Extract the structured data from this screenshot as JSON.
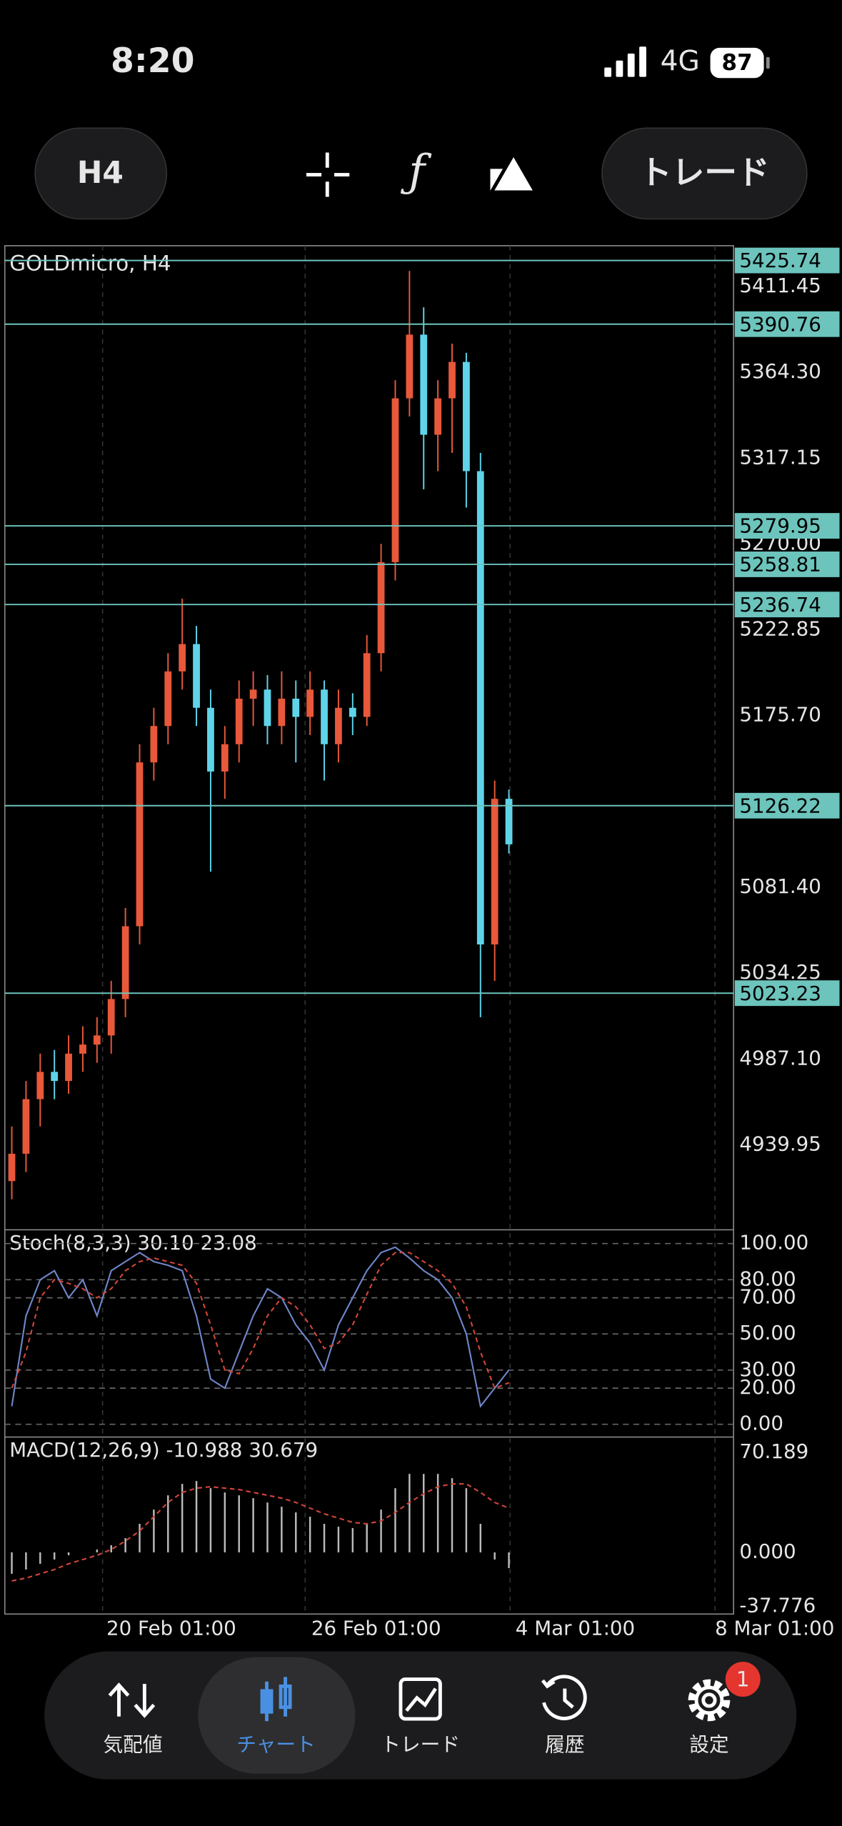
{
  "status_bar": {
    "time": "8:20",
    "network": "4G",
    "battery": "87"
  },
  "toolbar": {
    "timeframe": "H4",
    "trade_button": "トレード"
  },
  "chart": {
    "symbol": "GOLDmicro, H4",
    "price_axis": {
      "ylim": [
        4893.9,
        5433.2
      ],
      "ticks": [
        5411.45,
        {
          "value": 5364.3,
          "label": "5364.30"
        },
        5317.15,
        {
          "value": 5270,
          "label": "5270.00"
        },
        5222.85,
        {
          "value": 5175.7,
          "label": "5175.70"
        },
        {
          "value": 5081.4,
          "label": "5081.40"
        },
        5034.25,
        {
          "value": 4987.1,
          "label": "4987.10"
        },
        4939.95
      ]
    },
    "levels": [
      5425.74,
      5390.76,
      5279.95,
      5258.81,
      5236.74,
      5126.22,
      5023.23
    ],
    "candles": {
      "open": [
        4920,
        4935,
        4965,
        4980,
        4975,
        4990,
        4995,
        5000,
        5020,
        5060,
        5150,
        5170,
        5200,
        5215,
        5180,
        5145,
        5160,
        5185,
        5190,
        5170,
        5185,
        5175,
        5190,
        5160,
        5180,
        5175,
        5210,
        5260,
        5350,
        5385,
        5330,
        5350,
        5370,
        5310,
        5050,
        5130
      ],
      "high": [
        4950,
        4975,
        4990,
        4992,
        5000,
        5005,
        5010,
        5030,
        5070,
        5160,
        5180,
        5210,
        5240,
        5225,
        5190,
        5170,
        5195,
        5200,
        5198,
        5200,
        5195,
        5200,
        5195,
        5190,
        5188,
        5220,
        5270,
        5360,
        5420,
        5400,
        5360,
        5380,
        5375,
        5320,
        5140,
        5135
      ],
      "low": [
        4910,
        4925,
        4950,
        4965,
        4968,
        4980,
        4985,
        4990,
        5010,
        5050,
        5140,
        5160,
        5190,
        5170,
        5090,
        5130,
        5150,
        5170,
        5160,
        5160,
        5150,
        5165,
        5140,
        5150,
        5165,
        5170,
        5200,
        5250,
        5340,
        5300,
        5310,
        5320,
        5290,
        5010,
        5030,
        5100
      ],
      "close": [
        4935,
        4965,
        4980,
        4975,
        4990,
        4995,
        5000,
        5020,
        5060,
        5150,
        5170,
        5200,
        5215,
        5180,
        5145,
        5160,
        5185,
        5190,
        5170,
        5185,
        5175,
        5190,
        5160,
        5180,
        5175,
        5210,
        5260,
        5350,
        5385,
        5330,
        5350,
        5370,
        5310,
        5050,
        5130,
        5105
      ]
    },
    "stoch": {
      "title": "Stoch(8,3,3) 30.10 23.08",
      "ylim": [
        -6.4,
        107
      ],
      "ticks": [
        {
          "value": 100,
          "label": "100.00"
        },
        {
          "value": 80,
          "label": "80.00"
        },
        {
          "value": 70,
          "label": "70.00"
        },
        {
          "value": 50,
          "label": "50.00"
        },
        {
          "value": 30,
          "label": "30.00"
        },
        {
          "value": 20,
          "label": "20.00"
        },
        {
          "value": 0,
          "label": "0.00"
        }
      ],
      "main": [
        10,
        60,
        80,
        85,
        70,
        80,
        60,
        85,
        90,
        95,
        90,
        88,
        85,
        60,
        25,
        20,
        40,
        60,
        75,
        70,
        55,
        45,
        30,
        55,
        70,
        85,
        95,
        98,
        92,
        85,
        80,
        70,
        50,
        10,
        20,
        30
      ],
      "signal": [
        20,
        40,
        70,
        80,
        78,
        75,
        70,
        75,
        85,
        90,
        92,
        90,
        88,
        78,
        55,
        30,
        28,
        42,
        60,
        70,
        65,
        55,
        42,
        45,
        55,
        72,
        88,
        95,
        95,
        90,
        85,
        78,
        65,
        40,
        20,
        23
      ]
    },
    "macd": {
      "title": "MACD(12,26,9) -10.988 30.679",
      "ylim": [
        -42.4,
        80
      ],
      "ticks": [
        70.189,
        {
          "value": 0,
          "label": "0.000"
        },
        -37.776
      ],
      "histogram": [
        -15,
        -12,
        -8,
        -5,
        -2,
        0,
        2,
        5,
        10,
        20,
        30,
        40,
        48,
        50,
        45,
        42,
        40,
        38,
        35,
        32,
        28,
        25,
        20,
        18,
        17,
        20,
        30,
        45,
        55,
        55,
        55,
        52,
        45,
        20,
        -5,
        -11
      ],
      "signal": [
        -20,
        -18,
        -15,
        -12,
        -8,
        -5,
        -2,
        2,
        8,
        15,
        25,
        35,
        42,
        45,
        46,
        45,
        44,
        42,
        40,
        38,
        35,
        31,
        27,
        24,
        21,
        20,
        22,
        28,
        35,
        41,
        46,
        48,
        48,
        42,
        35,
        31
      ]
    },
    "date_labels": [
      "20 Feb 01:00",
      "26 Feb 01:00",
      "4 Mar 01:00",
      "8 Mar 01:00"
    ]
  },
  "tab_bar": {
    "tabs": [
      "気配値",
      "チャート",
      "トレード",
      "履歴",
      "設定"
    ],
    "badge": "1"
  }
}
